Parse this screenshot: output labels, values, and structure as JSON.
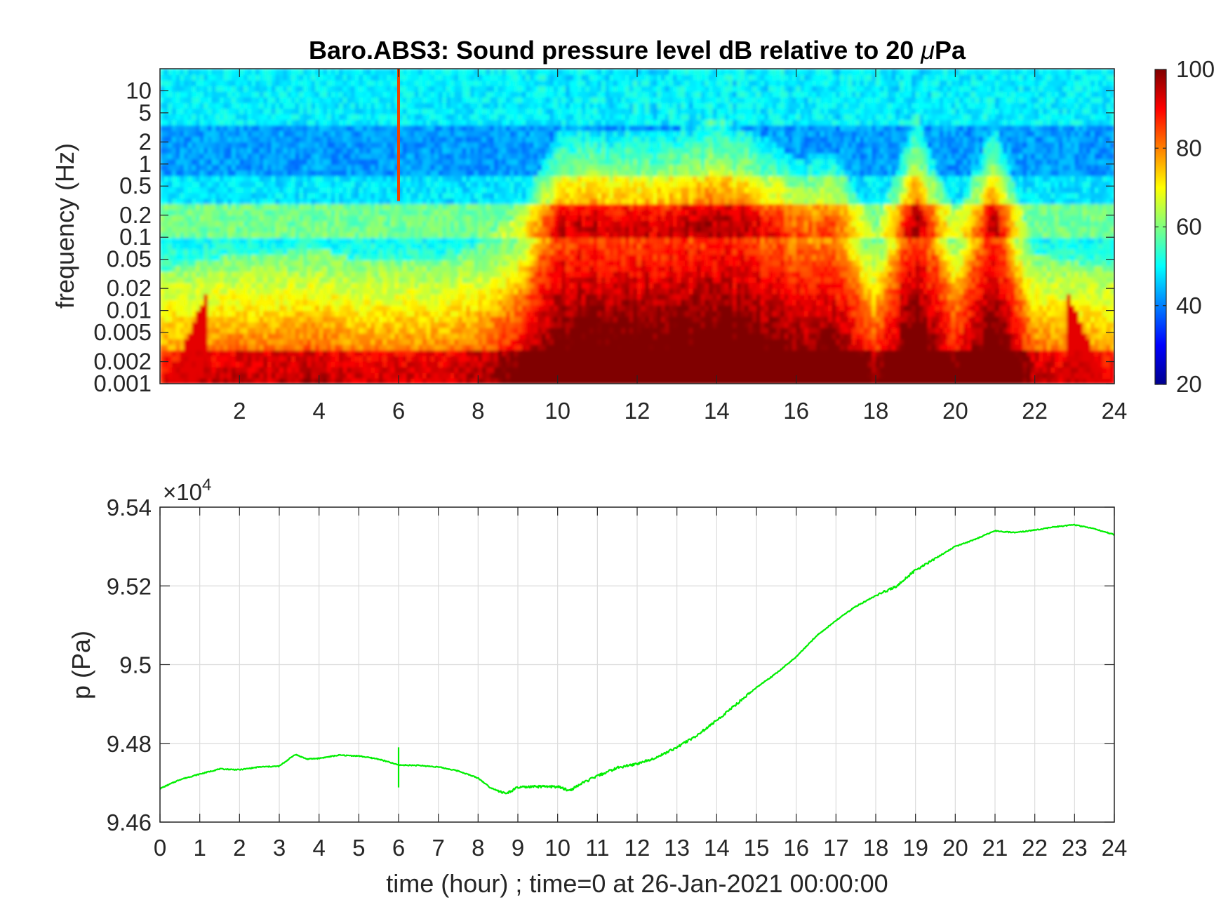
{
  "chart_data": [
    {
      "type": "heatmap",
      "title": "Baro.ABS3: Sound pressure level dB relative to 20 μPa",
      "title_parts": [
        "Baro.ABS3: Sound pressure level dB relative to 20 ",
        "μ",
        "Pa"
      ],
      "xlabel": "",
      "ylabel": "frequency (Hz)",
      "xlim": [
        0,
        24
      ],
      "ylim": [
        0.001,
        20
      ],
      "yscale": "log",
      "xticks": [
        "2",
        "4",
        "6",
        "8",
        "10",
        "12",
        "14",
        "16",
        "18",
        "20",
        "22",
        "24"
      ],
      "xtick_values": [
        2,
        4,
        6,
        8,
        10,
        12,
        14,
        16,
        18,
        20,
        22,
        24
      ],
      "yticks": [
        "0.001",
        "0.002",
        "0.005",
        "0.01",
        "0.02",
        "0.05",
        "0.1",
        "0.2",
        "0.5",
        "1",
        "2",
        "5",
        "10"
      ],
      "ytick_values": [
        0.001,
        0.002,
        0.005,
        0.01,
        0.02,
        0.05,
        0.1,
        0.2,
        0.5,
        1,
        2,
        5,
        10
      ],
      "colormap": "jet",
      "colorbar": {
        "range": [
          20,
          100
        ],
        "ticks": [
          "20",
          "40",
          "60",
          "80",
          "100"
        ],
        "tick_values": [
          20,
          40,
          60,
          80,
          100
        ]
      },
      "activity_hours": [
        0,
        1,
        2,
        3,
        4,
        5,
        6,
        7,
        8,
        9,
        10,
        11,
        12,
        13,
        14,
        15,
        16,
        17,
        18,
        19,
        20,
        21,
        22,
        23,
        24
      ],
      "activity_level": [
        0.05,
        0.1,
        0.15,
        0.15,
        0.18,
        0.1,
        0.12,
        0.1,
        0.2,
        0.35,
        0.8,
        0.8,
        0.78,
        0.8,
        0.85,
        0.78,
        0.65,
        0.68,
        0.25,
        0.9,
        0.35,
        0.85,
        0.15,
        0.1,
        0.05
      ],
      "spike_hour": 6,
      "grid": false
    },
    {
      "type": "line",
      "xlabel": "time (hour) ; time=0 at 26-Jan-2021 00:00:00",
      "ylabel": "p (Pa)",
      "xlim": [
        0,
        24
      ],
      "ylim": [
        94600,
        95400
      ],
      "multiplier_base": "×10",
      "multiplier_exponent": "4",
      "xticks": [
        "0",
        "1",
        "2",
        "3",
        "4",
        "5",
        "6",
        "7",
        "8",
        "9",
        "10",
        "11",
        "12",
        "13",
        "14",
        "15",
        "16",
        "17",
        "18",
        "19",
        "20",
        "21",
        "22",
        "23",
        "24"
      ],
      "xtick_values": [
        0,
        1,
        2,
        3,
        4,
        5,
        6,
        7,
        8,
        9,
        10,
        11,
        12,
        13,
        14,
        15,
        16,
        17,
        18,
        19,
        20,
        21,
        22,
        23,
        24
      ],
      "yticks": [
        "9.46",
        "9.48",
        "9.5",
        "9.52",
        "9.54"
      ],
      "ytick_values": [
        94600,
        94800,
        95000,
        95200,
        95400
      ],
      "grid": true,
      "series": [
        {
          "color": "#00ee00",
          "x": [
            0,
            0.5,
            1,
            1.5,
            2,
            2.5,
            3,
            3.4,
            3.7,
            4,
            4.5,
            5,
            5.5,
            6,
            6.5,
            7,
            7.5,
            8,
            8.3,
            8.7,
            9,
            9.5,
            10,
            10.3,
            10.6,
            11,
            11.5,
            12,
            12.5,
            13,
            13.5,
            14,
            14.5,
            15,
            15.5,
            16,
            16.5,
            17,
            17.5,
            18,
            18.5,
            19,
            19.5,
            20,
            20.5,
            21,
            21.5,
            22,
            22.5,
            23,
            23.5,
            24
          ],
          "y": [
            94685,
            94708,
            94722,
            94735,
            94733,
            94740,
            94742,
            94772,
            94760,
            94762,
            94770,
            94768,
            94760,
            94745,
            94744,
            94740,
            94730,
            94712,
            94688,
            94672,
            94688,
            94690,
            94690,
            94680,
            94698,
            94717,
            94738,
            94748,
            94765,
            94790,
            94820,
            94858,
            94900,
            94942,
            94978,
            95020,
            95072,
            95112,
            95148,
            95175,
            95198,
            95240,
            95270,
            95300,
            95318,
            95340,
            95335,
            95342,
            95350,
            95355,
            95345,
            95330
          ]
        }
      ],
      "spike": {
        "x": 6,
        "y_low": 94688,
        "y_high": 94790
      }
    }
  ]
}
